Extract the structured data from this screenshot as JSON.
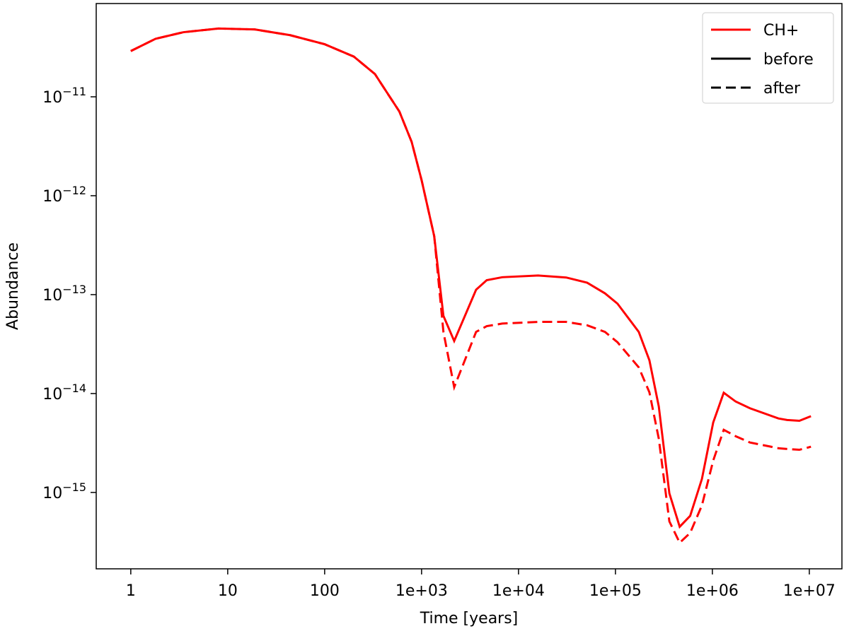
{
  "chart_data": {
    "type": "line",
    "xlabel": "Time [years]",
    "ylabel": "Abundance",
    "xscale": "log",
    "yscale": "log",
    "xlim": [
      0.44,
      21700000
    ],
    "ylim": [
      1.69e-16,
      8.77e-11
    ],
    "xticks": [
      1,
      10,
      100,
      {
        "value": 1000,
        "label": "1e+03"
      },
      {
        "value": 10000,
        "label": "1e+04"
      },
      {
        "value": 100000,
        "label": "1e+05"
      },
      {
        "value": 1000000,
        "label": "1e+06"
      },
      {
        "value": 10000000,
        "label": "1e+07"
      }
    ],
    "yticks": [
      {
        "value": 1e-11,
        "label": "10−11"
      },
      {
        "value": 1e-12,
        "label": "10−12"
      },
      {
        "value": 1e-13,
        "label": "10−13"
      },
      {
        "value": 1e-14,
        "label": "10−14"
      },
      {
        "value": 1e-15,
        "label": "10−15"
      }
    ],
    "species": "CH+",
    "color": "#ff0000",
    "legend_line_color": "#000000",
    "legend_loc": "upper right",
    "x": [
      1,
      1.8,
      3.5,
      8,
      19,
      44,
      100,
      200,
      330,
      590,
      790,
      1000,
      1350,
      1680,
      2170,
      3650,
      4700,
      6800,
      16000,
      31000,
      51000,
      78000,
      105000,
      174000,
      224000,
      280000,
      360000,
      460000,
      590000,
      780000,
      1020000,
      1310000,
      1740000,
      2440000,
      4800000,
      5900000,
      7900000,
      10400000
    ],
    "series": [
      {
        "name": "before",
        "dash": "solid",
        "values": [
          2.9e-11,
          3.86e-11,
          4.5e-11,
          4.9e-11,
          4.8e-11,
          4.2e-11,
          3.4e-11,
          2.55e-11,
          1.7e-11,
          7.1e-12,
          3.5e-12,
          1.44e-12,
          3.9e-13,
          6.1e-14,
          3.4e-14,
          1.12e-13,
          1.4e-13,
          1.5e-13,
          1.56e-13,
          1.49e-13,
          1.32e-13,
          1.03e-13,
          8.1e-14,
          4.2e-14,
          2.17e-14,
          7.4e-15,
          9.8e-16,
          4.5e-16,
          5.8e-16,
          1.37e-15,
          5.1e-15,
          1.02e-14,
          8.3e-15,
          7.1e-15,
          5.6e-15,
          5.4e-15,
          5.3e-15,
          5.9e-15
        ]
      },
      {
        "name": "after",
        "dash": "dashed",
        "values": [
          2.9e-11,
          3.86e-11,
          4.5e-11,
          4.9e-11,
          4.8e-11,
          4.2e-11,
          3.4e-11,
          2.55e-11,
          1.7e-11,
          7.1e-12,
          3.5e-12,
          1.44e-12,
          3.9e-13,
          4.2e-14,
          1.16e-14,
          4.2e-14,
          4.8e-14,
          5.1e-14,
          5.3e-14,
          5.3e-14,
          4.9e-14,
          4.2e-14,
          3.3e-14,
          1.84e-14,
          1.03e-14,
          3.5e-15,
          5.1e-16,
          3.1e-16,
          3.9e-16,
          7.4e-16,
          2.1e-15,
          4.3e-15,
          3.7e-15,
          3.2e-15,
          2.8e-15,
          2.75e-15,
          2.7e-15,
          2.9e-15
        ]
      }
    ]
  }
}
